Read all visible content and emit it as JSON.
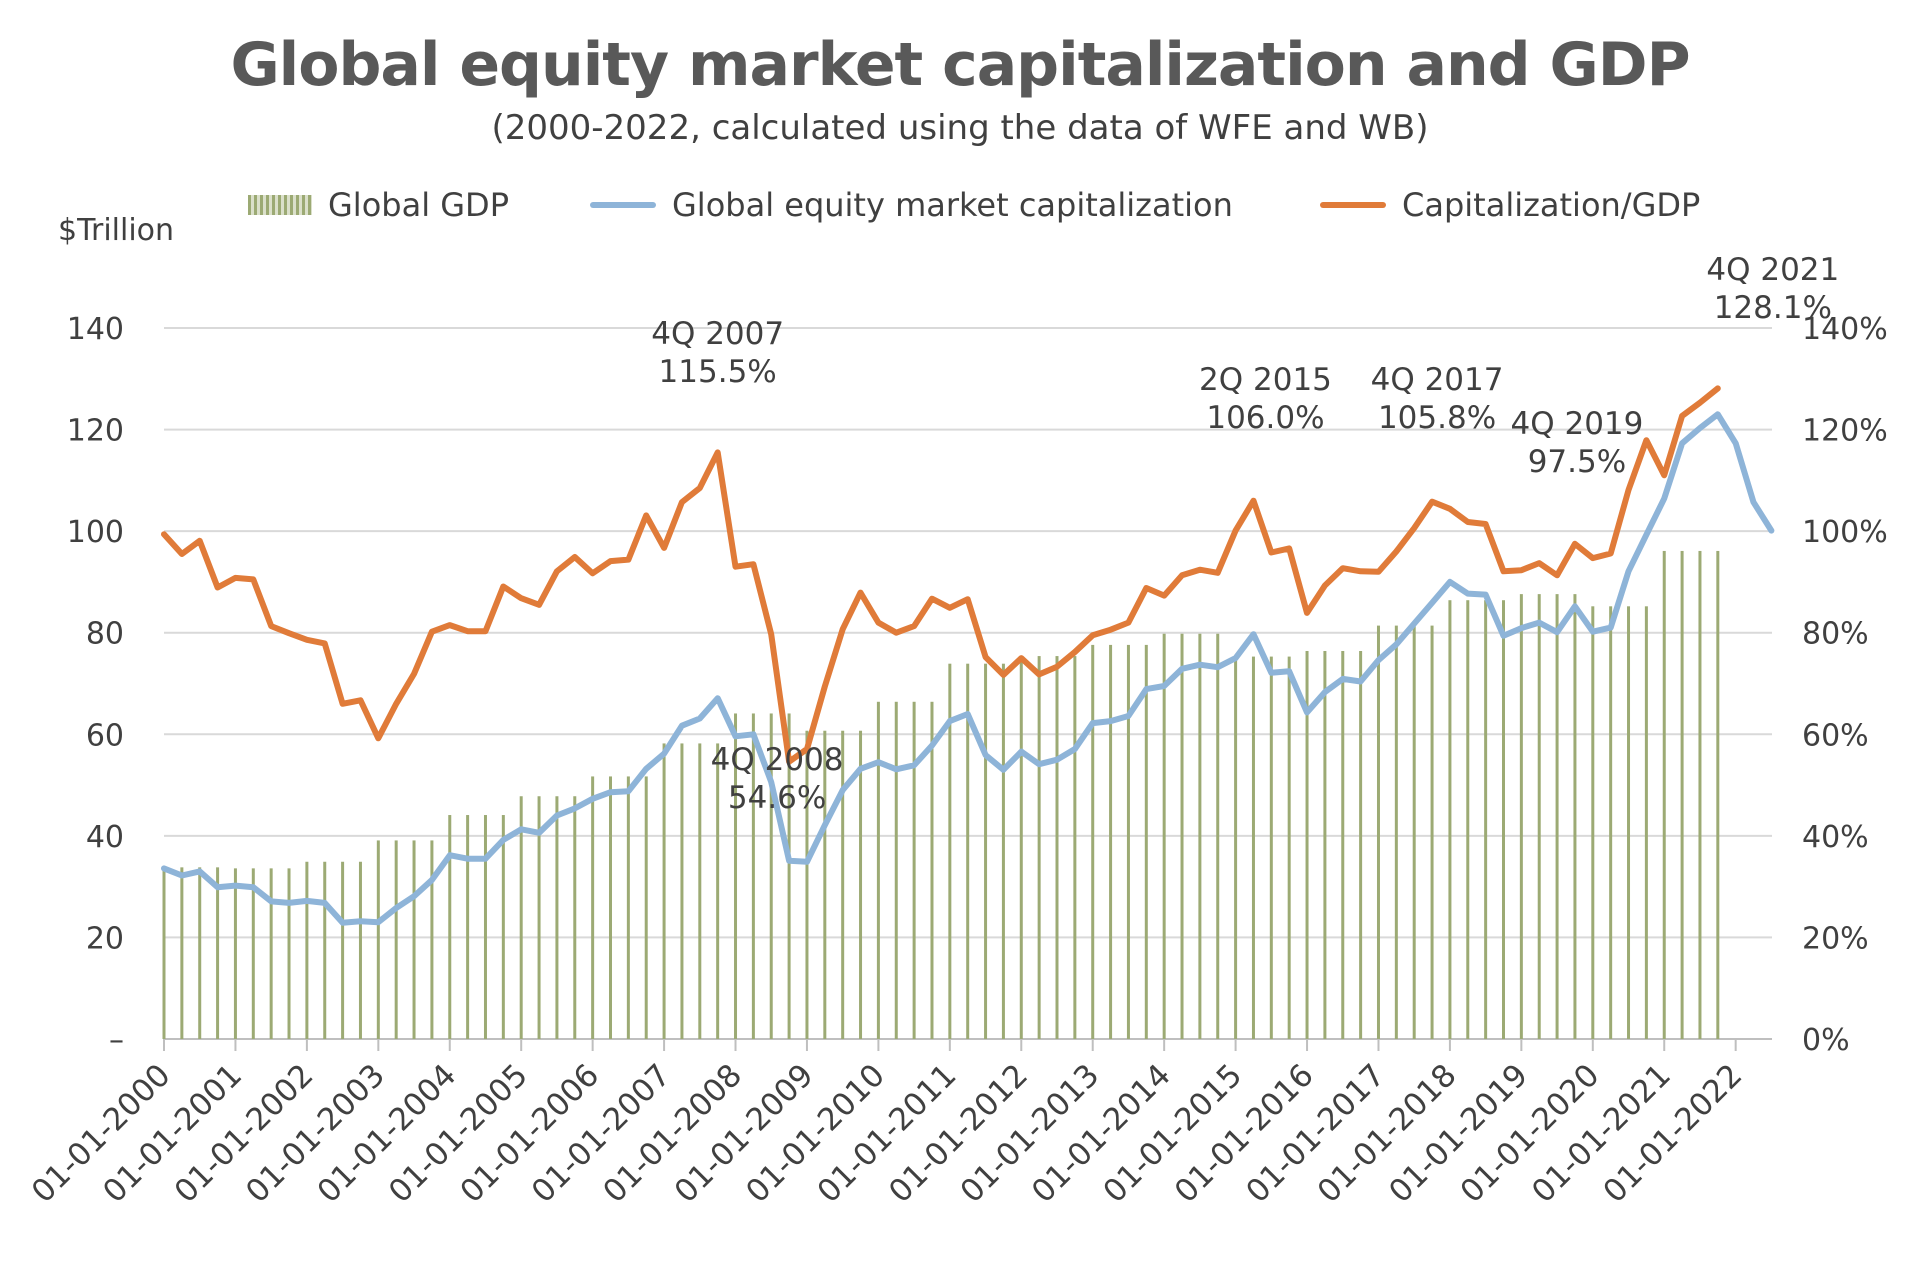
{
  "chart_data": {
    "type": "bar",
    "title": "Global equity market capitalization and GDP",
    "subtitle": "(2000-2022, calculated using the data of WFE and WB)",
    "ylabel": "$Trillion",
    "ylim": [
      0,
      140
    ],
    "y2lim": [
      0,
      1.4
    ],
    "yticks": [
      "–",
      "20",
      "40",
      "60",
      "80",
      "100",
      "120",
      "140"
    ],
    "y2ticks": [
      "0%",
      "20%",
      "40%",
      "60%",
      "80%",
      "100%",
      "120%",
      "140%"
    ],
    "grid": "horizontal",
    "legend_position": "top",
    "x_tick_labels": [
      "01-01-2000",
      "01-01-2001",
      "01-01-2002",
      "01-01-2003",
      "01-01-2004",
      "01-01-2005",
      "01-01-2006",
      "01-01-2007",
      "01-01-2008",
      "01-01-2009",
      "01-01-2010",
      "01-01-2011",
      "01-01-2012",
      "01-01-2013",
      "01-01-2014",
      "01-01-2015",
      "01-01-2016",
      "01-01-2017",
      "01-01-2018",
      "01-01-2019",
      "01-01-2020",
      "01-01-2021",
      "01-01-2022"
    ],
    "series": [
      {
        "name": "Global GDP",
        "type": "bar",
        "color": "#9CAA74",
        "values": [
          33.8,
          33.8,
          33.8,
          33.8,
          33.6,
          33.6,
          33.6,
          33.6,
          34.9,
          34.9,
          34.9,
          34.9,
          39.1,
          39.1,
          39.1,
          39.1,
          44.1,
          44.1,
          44.1,
          44.1,
          47.8,
          47.8,
          47.8,
          47.8,
          51.7,
          51.7,
          51.7,
          51.7,
          58.2,
          58.2,
          58.2,
          58.2,
          64.1,
          64.1,
          64.1,
          64.1,
          60.7,
          60.7,
          60.7,
          60.7,
          66.4,
          66.4,
          66.4,
          66.4,
          73.9,
          73.9,
          73.9,
          73.9,
          75.4,
          75.4,
          75.4,
          75.4,
          77.6,
          77.6,
          77.6,
          77.6,
          79.8,
          79.8,
          79.8,
          79.8,
          75.3,
          75.3,
          75.3,
          75.3,
          76.4,
          76.4,
          76.4,
          76.4,
          81.4,
          81.4,
          81.4,
          81.4,
          86.4,
          86.4,
          86.4,
          86.4,
          87.6,
          87.6,
          87.6,
          87.6,
          85.2,
          85.2,
          85.2,
          85.2,
          96.1,
          96.1,
          96.1,
          96.1
        ]
      },
      {
        "name": "Global equity market capitalization",
        "type": "line",
        "color": "#8EB4D8",
        "axis": "left",
        "values": [
          33.6,
          32.2,
          33.0,
          29.9,
          30.2,
          29.9,
          27.1,
          26.8,
          27.2,
          26.8,
          22.9,
          23.2,
          23.0,
          25.8,
          28.1,
          31.3,
          36.2,
          35.5,
          35.5,
          39.2,
          41.3,
          40.6,
          44.0,
          45.4,
          47.3,
          48.6,
          48.8,
          53.2,
          56.2,
          61.7,
          63.1,
          67.1,
          59.6,
          60.0,
          50.6,
          35.1,
          34.9,
          42.1,
          49.0,
          53.2,
          54.5,
          53.1,
          53.9,
          57.8,
          62.6,
          64.0,
          55.9,
          53.0,
          56.6,
          54.1,
          55.0,
          57.1,
          62.2,
          62.6,
          63.6,
          68.9,
          69.5,
          72.9,
          73.7,
          73.2,
          75.0,
          79.7,
          72.1,
          72.4,
          64.3,
          68.3,
          70.9,
          70.4,
          74.6,
          77.7,
          81.8,
          85.9,
          90.0,
          87.7,
          87.5,
          79.4,
          80.9,
          82.0,
          80.1,
          85.2,
          80.2,
          81.0,
          92.1,
          99.3,
          106.4,
          117.3,
          120.3,
          123.0,
          117.3,
          105.7,
          100.1
        ]
      },
      {
        "name": "Capitalization/GDP",
        "type": "line",
        "color": "#E07B39",
        "axis": "right",
        "values": [
          0.994,
          0.955,
          0.981,
          0.889,
          0.908,
          0.905,
          0.813,
          0.799,
          0.786,
          0.779,
          0.66,
          0.667,
          0.592,
          0.66,
          0.719,
          0.802,
          0.815,
          0.803,
          0.803,
          0.891,
          0.868,
          0.855,
          0.921,
          0.949,
          0.917,
          0.941,
          0.944,
          1.031,
          0.967,
          1.057,
          1.085,
          1.155,
          0.93,
          0.935,
          0.797,
          0.546,
          0.571,
          0.694,
          0.807,
          0.879,
          0.82,
          0.8,
          0.813,
          0.867,
          0.849,
          0.866,
          0.752,
          0.717,
          0.75,
          0.718,
          0.733,
          0.762,
          0.795,
          0.806,
          0.82,
          0.888,
          0.873,
          0.913,
          0.924,
          0.918,
          1.001,
          1.06,
          0.958,
          0.966,
          0.839,
          0.893,
          0.927,
          0.921,
          0.92,
          0.96,
          1.006,
          1.058,
          1.044,
          1.018,
          1.014,
          0.921,
          0.923,
          0.937,
          0.913,
          0.975,
          0.947,
          0.956,
          1.081,
          1.179,
          1.11,
          1.227,
          1.253,
          1.281
        ]
      }
    ],
    "annotations": [
      {
        "line1": "4Q 2007",
        "line2": "115.5%",
        "index": 31
      },
      {
        "line1": "4Q 2008",
        "line2": "54.6%",
        "index": 35
      },
      {
        "line1": "2Q 2015",
        "line2": "106.0%",
        "index": 61
      },
      {
        "line1": "4Q 2017",
        "line2": "105.8%",
        "index": 71
      },
      {
        "line1": "4Q 2019",
        "line2": "97.5%",
        "index": 79
      },
      {
        "line1": "4Q 2021",
        "line2": "128.1%",
        "index": 87
      }
    ]
  }
}
